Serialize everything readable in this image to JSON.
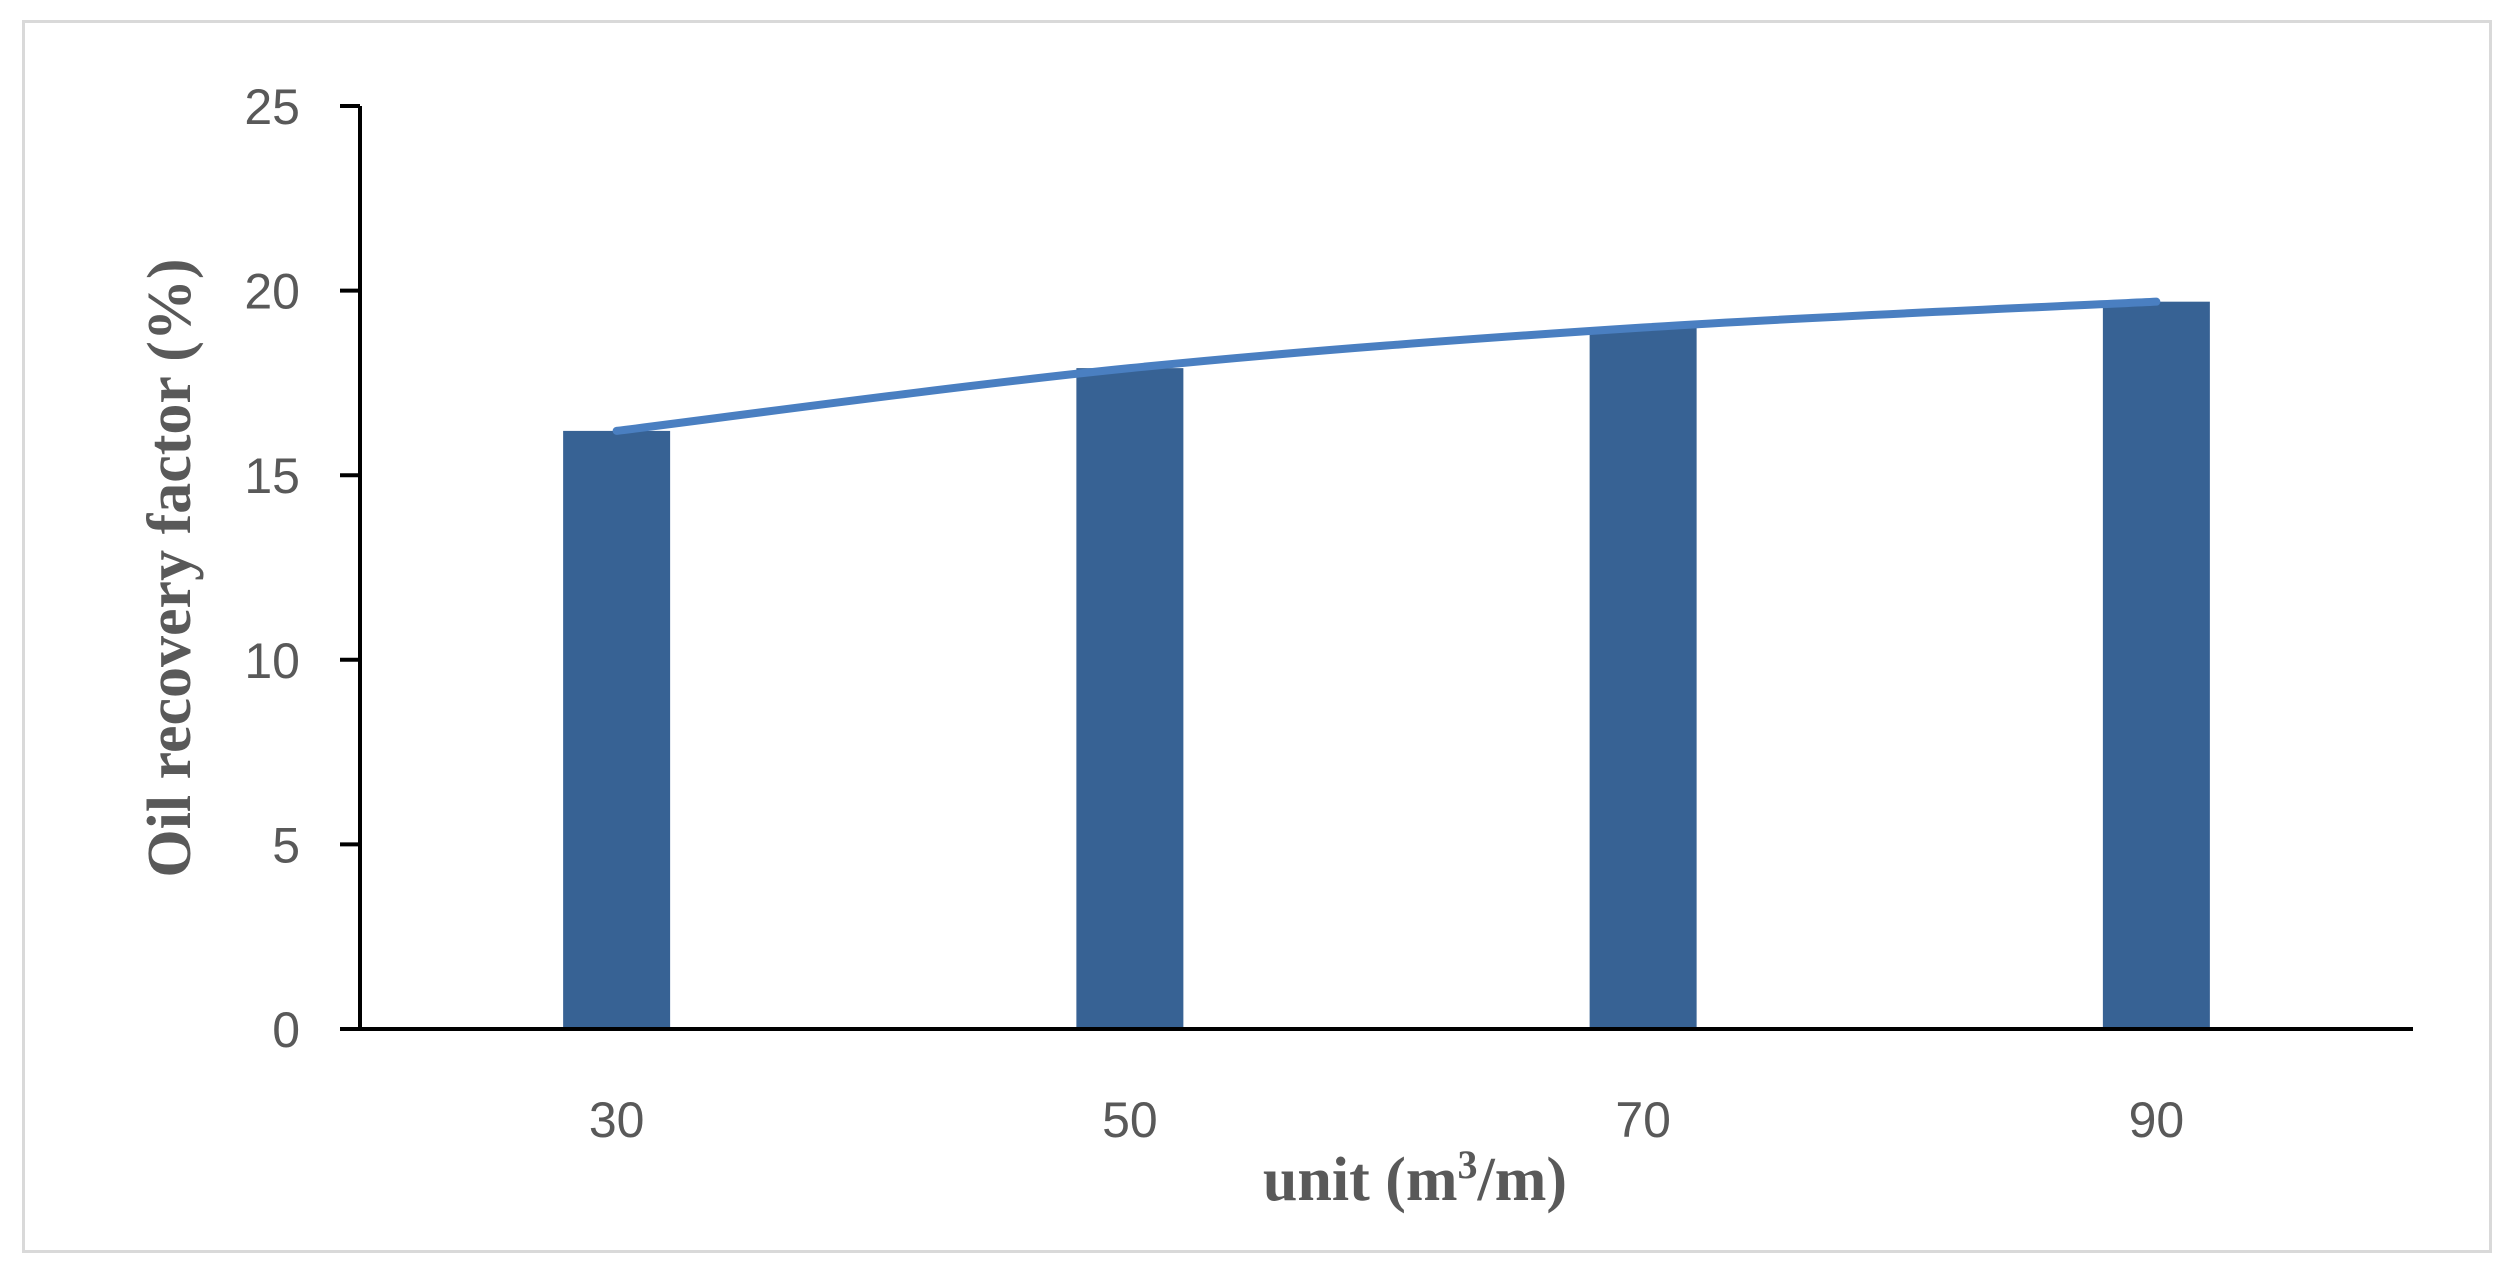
{
  "chart_data": {
    "type": "bar",
    "categories": [
      "30",
      "50",
      "70",
      "90"
    ],
    "values": [
      16.2,
      17.9,
      19.0,
      19.7
    ],
    "trendline": [
      16.2,
      17.9,
      19.0,
      19.7
    ],
    "xlabel_prefix": "unit (m",
    "xlabel_sup": "3",
    "xlabel_suffix": "/m)",
    "ylabel": "Oil recovery factor (%)",
    "ylim": [
      0,
      25
    ],
    "yticks": [
      "0",
      "5",
      "10",
      "15",
      "20",
      "25"
    ],
    "grid": false,
    "legend": false
  },
  "colors": {
    "bar": "#376294",
    "line": "#4a7fc1",
    "axis": "#000000",
    "text": "#595959",
    "frame": "#d9d9d9"
  }
}
